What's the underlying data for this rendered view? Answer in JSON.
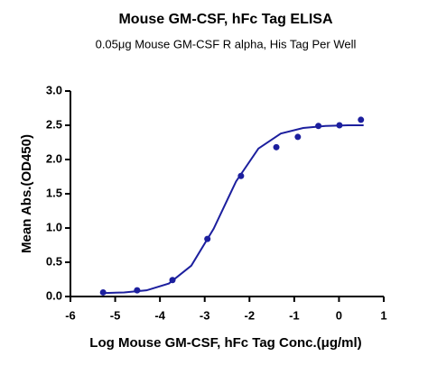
{
  "chart_data": {
    "type": "scatter",
    "title": "Mouse GM-CSF, hFc Tag ELISA",
    "subtitle": "0.05μg Mouse GM-CSF R alpha, His Tag Per Well",
    "x_label": "Log Mouse GM-CSF, hFc Tag Conc.(μg/ml)",
    "y_label": "Mean Abs.(OD450)",
    "color": "#1c1f9e",
    "x": [
      -5.27,
      -4.51,
      -3.72,
      -2.94,
      -2.19,
      -1.4,
      -0.92,
      -0.46,
      0.01,
      0.49
    ],
    "values": [
      0.06,
      0.09,
      0.24,
      0.84,
      1.76,
      2.18,
      2.33,
      2.49,
      2.5,
      2.58
    ],
    "fit": {
      "x": [
        -5.3,
        -4.8,
        -4.3,
        -3.8,
        -3.3,
        -2.8,
        -2.3,
        -1.8,
        -1.3,
        -0.8,
        -0.3,
        0.2,
        0.55
      ],
      "values": [
        0.05,
        0.06,
        0.09,
        0.19,
        0.45,
        0.99,
        1.68,
        2.16,
        2.38,
        2.46,
        2.49,
        2.5,
        2.5
      ]
    },
    "xlim": [
      -6,
      1
    ],
    "xticks": [
      -6,
      -5,
      -4,
      -3,
      -2,
      -1,
      0,
      1
    ],
    "ylim": [
      0,
      3
    ],
    "yticks": [
      {
        "value": 0,
        "label": "0.0"
      },
      0.5,
      {
        "value": 1,
        "label": "1.0"
      },
      1.5,
      {
        "value": 2,
        "label": "2.0"
      },
      2.5,
      {
        "value": 3,
        "label": "3.0"
      }
    ]
  }
}
